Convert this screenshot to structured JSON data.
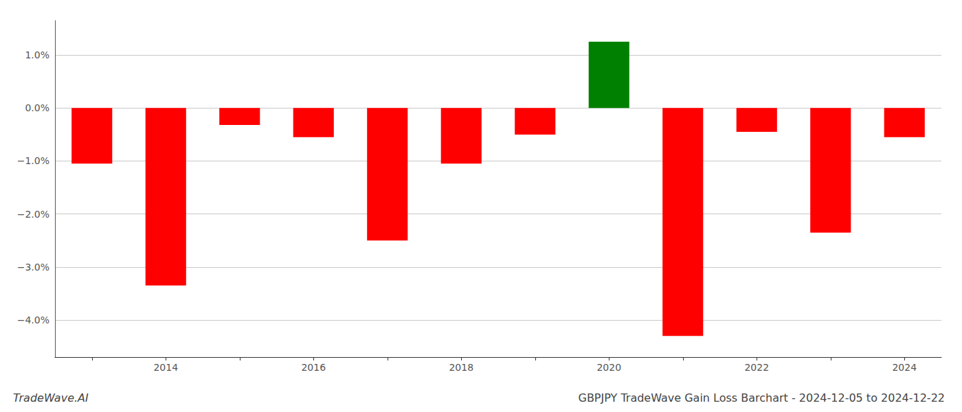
{
  "chart_data": {
    "type": "bar",
    "title": "GBPJPY TradeWave Gain Loss Barchart - 2024-12-05 to 2024-12-22",
    "annotations": [
      "TradeWave.AI"
    ],
    "categories": [
      null,
      "2014",
      null,
      "2016",
      null,
      "2018",
      null,
      "2020",
      null,
      "2022",
      null,
      "2024"
    ],
    "values": [
      -1.05,
      -3.35,
      -0.32,
      -0.55,
      -2.5,
      -1.05,
      -0.5,
      1.25,
      -4.3,
      -0.45,
      -2.35,
      -0.55
    ],
    "colors": [
      "#ff0000",
      "#ff0000",
      "#ff0000",
      "#ff0000",
      "#ff0000",
      "#ff0000",
      "#ff0000",
      "#008000",
      "#ff0000",
      "#ff0000",
      "#ff0000",
      "#ff0000"
    ],
    "ylim": [
      -4.7,
      1.65
    ],
    "yticks": [
      {
        "value": -4.0,
        "label": "−4.0%"
      },
      {
        "value": -3.0,
        "label": "−3.0%"
      },
      {
        "value": -2.0,
        "label": "−2.0%"
      },
      {
        "value": -1.0,
        "label": "−1.0%"
      },
      {
        "value": 0.0,
        "label": "0.0%"
      },
      {
        "value": 1.0,
        "label": "1.0%"
      }
    ],
    "grid": true
  }
}
